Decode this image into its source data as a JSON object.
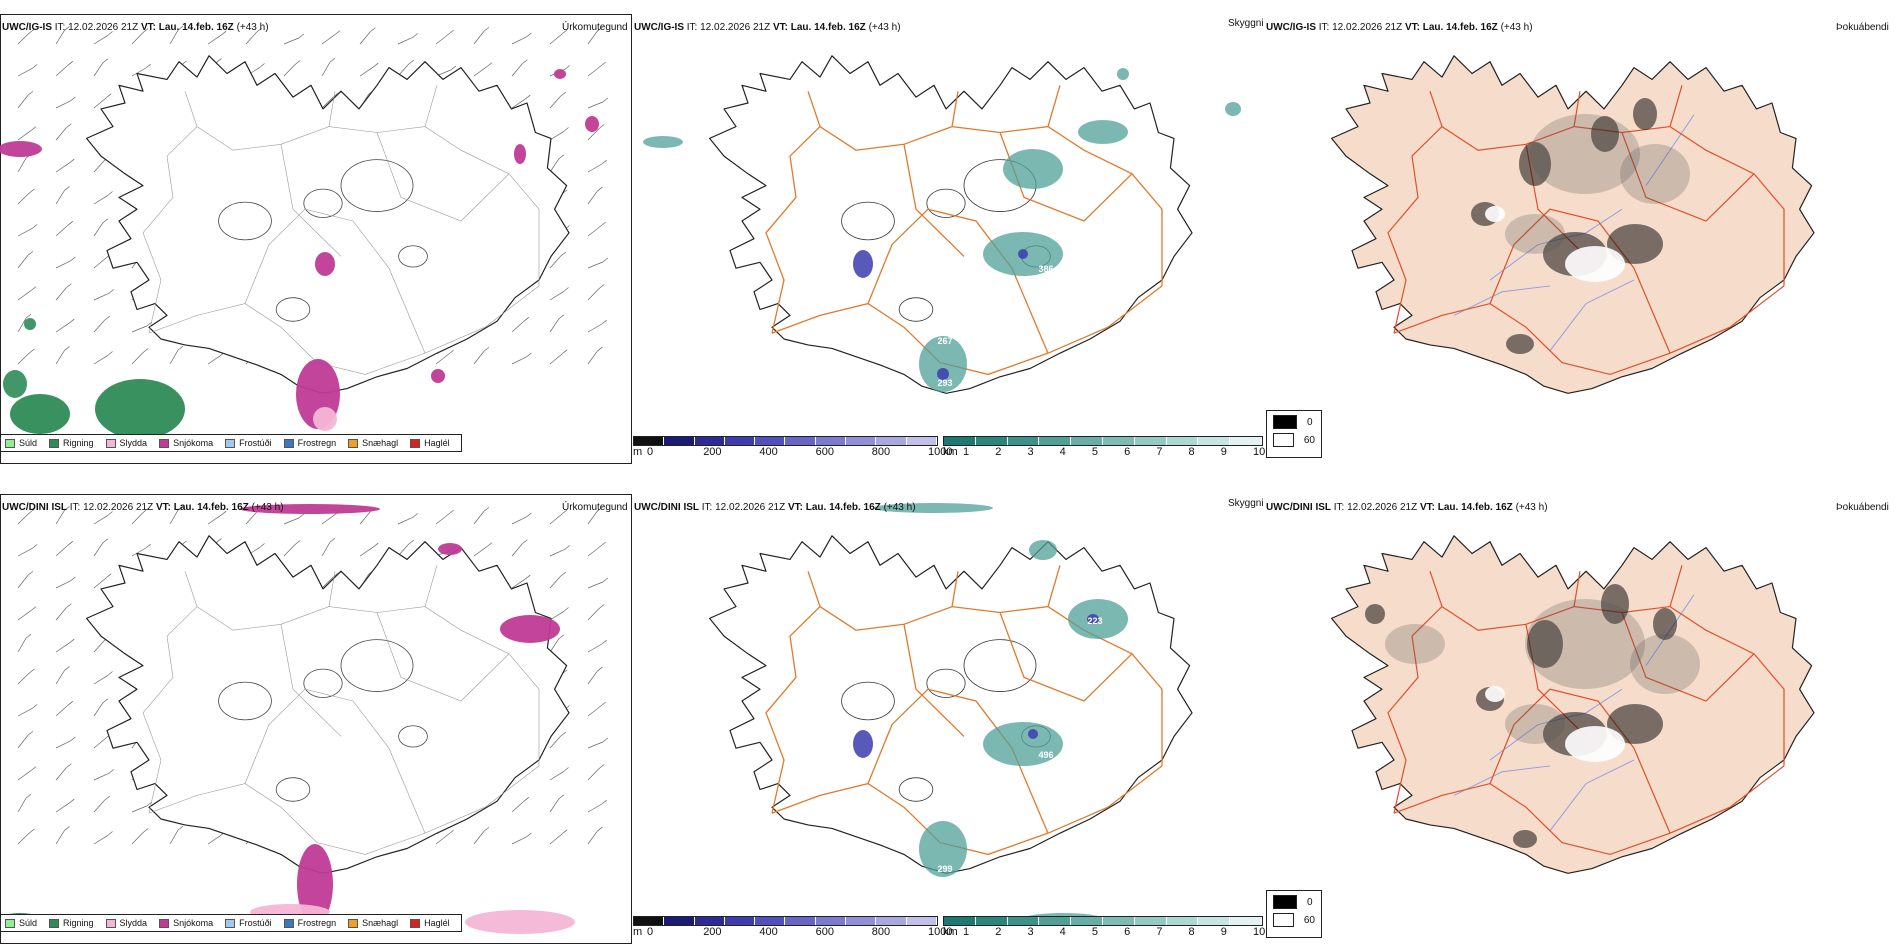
{
  "rows": [
    {
      "precip": {
        "model": "UWC/IG-IS",
        "it_label": "IT:",
        "it_value": "12.02.2026 21Z",
        "vt_label": "VT:",
        "vt_value": "Lau. 14.feb. 16Z",
        "lead": "(+43 h)",
        "name": "Úrkomutegund"
      },
      "cloud": {
        "model": "UWC/IG-IS",
        "it_label": "IT:",
        "it_value": "12.02.2026 21Z",
        "vt_label": "VT:",
        "vt_value": "Lau. 14.feb. 16Z",
        "lead": "(+43 h)",
        "name": "Skyggni",
        "labels": [
          "386",
          "267",
          "293"
        ]
      },
      "fog": {
        "model": "UWC/IG-IS",
        "it_label": "IT:",
        "it_value": "12.02.2026 21Z",
        "vt_label": "VT:",
        "vt_value": "Lau. 14.feb. 16Z",
        "lead": "(+43 h)",
        "name": "Þokuábendi"
      }
    },
    {
      "precip": {
        "model": "UWC/DINI ISL",
        "it_label": "IT:",
        "it_value": "12.02.2026 21Z",
        "vt_label": "VT:",
        "vt_value": "Lau. 14.feb. 16Z",
        "lead": "(+43 h)",
        "name": "Úrkomutegund"
      },
      "cloud": {
        "model": "UWC/DINI ISL",
        "it_label": "IT:",
        "it_value": "12.02.2026 21Z",
        "vt_label": "VT:",
        "vt_value": "Lau. 14.feb. 16Z",
        "lead": "(+43 h)",
        "name": "Skyggni",
        "labels": [
          "496",
          "223",
          "299"
        ]
      },
      "fog": {
        "model": "UWC/DINI ISL",
        "it_label": "IT:",
        "it_value": "12.02.2026 21Z",
        "vt_label": "VT:",
        "vt_value": "Lau. 14.feb. 16Z",
        "lead": "(+43 h)",
        "name": "Þokuábendi"
      }
    }
  ],
  "precip_legend": [
    {
      "label": "Súld",
      "color": "#90ee90"
    },
    {
      "label": "Rigning",
      "color": "#2e8b57"
    },
    {
      "label": "Slydda",
      "color": "#f4b6d6"
    },
    {
      "label": "Snjókoma",
      "color": "#c03a96"
    },
    {
      "label": "Frostúði",
      "color": "#9ec9f0"
    },
    {
      "label": "Frostregn",
      "color": "#3a78c2"
    },
    {
      "label": "Snæhagl",
      "color": "#f0a020"
    },
    {
      "label": "Haglél",
      "color": "#e02020"
    }
  ],
  "ceiling_bar": {
    "unit": "m",
    "ticks": [
      "0",
      "200",
      "400",
      "600",
      "800",
      "1000"
    ],
    "colors": [
      "#111111",
      "#1a1a78",
      "#2a2a9a",
      "#3c3cb0",
      "#5050c0",
      "#6666c8",
      "#7a7ad0",
      "#9090d8",
      "#a8a8e0",
      "#c0c0e8"
    ]
  },
  "visibility_bar": {
    "unit": "km",
    "ticks": [
      "1",
      "2",
      "3",
      "4",
      "5",
      "6",
      "7",
      "8",
      "9",
      "10"
    ],
    "colors": [
      "#1d7a72",
      "#2a857d",
      "#3c918a",
      "#50a098",
      "#66aea6",
      "#7cbcb5",
      "#94cac4",
      "#acd8d3",
      "#c6e6e2",
      "#e2f3f1"
    ]
  },
  "fog_legend": [
    {
      "label": "0",
      "color": "#000000"
    },
    {
      "label": "60",
      "color": "#ffffff"
    }
  ],
  "colors": {
    "land_fog": "#f5dccb",
    "roads": "#e07a2a",
    "roads_fog": "#e0502a",
    "rivers": "#8a9ae8",
    "coast": "#222222"
  }
}
